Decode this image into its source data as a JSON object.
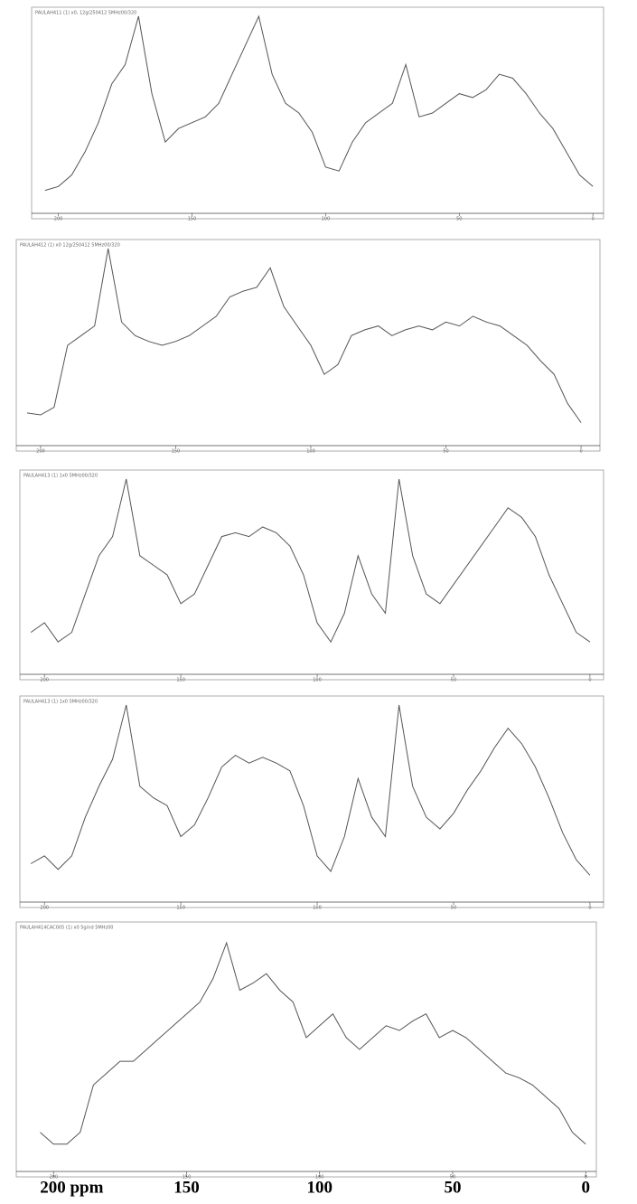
{
  "chart_data": [
    {
      "type": "line",
      "title": "PAULAH411 (1) x0, 12g/250412 5MHz00/320",
      "color": "#555555",
      "xlim": [
        210,
        -4
      ],
      "ylim": [
        0,
        100
      ],
      "xticks": [
        200,
        150,
        100,
        50,
        0
      ],
      "x": [
        205,
        200,
        195,
        190,
        185,
        180,
        175,
        170,
        165,
        160,
        155,
        150,
        145,
        140,
        135,
        130,
        125,
        120,
        115,
        110,
        105,
        100,
        95,
        90,
        85,
        80,
        75,
        70,
        65,
        60,
        55,
        50,
        45,
        40,
        35,
        30,
        25,
        20,
        15,
        10,
        5,
        0
      ],
      "values": [
        10,
        12,
        18,
        30,
        45,
        65,
        75,
        100,
        60,
        35,
        42,
        45,
        48,
        55,
        70,
        85,
        100,
        70,
        55,
        50,
        40,
        22,
        20,
        35,
        45,
        50,
        55,
        75,
        48,
        50,
        55,
        60,
        58,
        62,
        70,
        68,
        60,
        50,
        42,
        30,
        18,
        12
      ]
    },
    {
      "type": "line",
      "title": "PAULAH412 (1) x0 12g/250412 5MHz00/320",
      "color": "#555555",
      "xlim": [
        209,
        -7
      ],
      "ylim": [
        0,
        100
      ],
      "xticks": [
        200,
        150,
        100,
        50,
        0
      ],
      "x": [
        205,
        200,
        195,
        190,
        185,
        180,
        175,
        170,
        165,
        160,
        155,
        150,
        145,
        140,
        135,
        130,
        125,
        120,
        115,
        110,
        105,
        100,
        95,
        90,
        85,
        80,
        75,
        70,
        65,
        60,
        55,
        50,
        45,
        40,
        35,
        30,
        25,
        20,
        15,
        10,
        5,
        0
      ],
      "values": [
        15,
        14,
        18,
        50,
        55,
        60,
        100,
        62,
        55,
        52,
        50,
        52,
        55,
        60,
        65,
        75,
        78,
        80,
        90,
        70,
        60,
        50,
        35,
        40,
        55,
        58,
        60,
        55,
        58,
        60,
        58,
        62,
        60,
        65,
        62,
        60,
        55,
        50,
        42,
        35,
        20,
        10
      ]
    },
    {
      "type": "line",
      "title": "PAULAH413 (1) 1x0 5MHz00/320",
      "color": "#555555",
      "xlim": [
        209,
        -5
      ],
      "ylim": [
        0,
        100
      ],
      "xticks": [
        200,
        150,
        100,
        50,
        0
      ],
      "x": [
        205,
        200,
        195,
        190,
        185,
        180,
        175,
        170,
        165,
        160,
        155,
        150,
        145,
        140,
        135,
        130,
        125,
        120,
        115,
        110,
        105,
        100,
        95,
        90,
        85,
        80,
        75,
        70,
        65,
        60,
        55,
        50,
        45,
        40,
        35,
        30,
        25,
        20,
        15,
        10,
        5,
        0
      ],
      "values": [
        20,
        25,
        15,
        20,
        40,
        60,
        70,
        100,
        60,
        55,
        50,
        35,
        40,
        55,
        70,
        72,
        70,
        75,
        72,
        65,
        50,
        25,
        15,
        30,
        60,
        40,
        30,
        100,
        60,
        40,
        35,
        45,
        55,
        65,
        75,
        85,
        80,
        70,
        50,
        35,
        20,
        15
      ]
    },
    {
      "type": "line",
      "title": "PAULAH413 (1) 1x0 5MHz00/320",
      "color": "#555555",
      "xlim": [
        209,
        -5
      ],
      "ylim": [
        0,
        100
      ],
      "xticks": [
        200,
        150,
        100,
        50,
        0
      ],
      "x": [
        205,
        200,
        195,
        190,
        185,
        180,
        175,
        170,
        165,
        160,
        155,
        150,
        145,
        140,
        135,
        130,
        125,
        120,
        115,
        110,
        105,
        100,
        95,
        90,
        85,
        80,
        75,
        70,
        65,
        60,
        55,
        50,
        45,
        40,
        35,
        30,
        25,
        20,
        15,
        10,
        5,
        0
      ],
      "values": [
        18,
        22,
        15,
        22,
        42,
        58,
        72,
        100,
        58,
        52,
        48,
        32,
        38,
        52,
        68,
        74,
        70,
        73,
        70,
        66,
        48,
        22,
        14,
        32,
        62,
        42,
        32,
        100,
        58,
        42,
        36,
        44,
        56,
        66,
        78,
        88,
        80,
        68,
        52,
        34,
        20,
        12
      ]
    },
    {
      "type": "line",
      "title": "PAULAH414CAC005 (1) x0 5g/nd 5MHz00",
      "color": "#555555",
      "xlim": [
        214,
        -4
      ],
      "ylim": [
        0,
        100
      ],
      "xticks": [
        200,
        150,
        100,
        50,
        0
      ],
      "x": [
        205,
        200,
        195,
        190,
        185,
        180,
        175,
        170,
        165,
        160,
        155,
        150,
        145,
        140,
        135,
        130,
        125,
        120,
        115,
        110,
        105,
        100,
        95,
        90,
        85,
        80,
        75,
        70,
        65,
        60,
        55,
        50,
        45,
        40,
        35,
        30,
        25,
        20,
        15,
        10,
        5,
        0
      ],
      "values": [
        15,
        10,
        10,
        15,
        35,
        40,
        45,
        45,
        50,
        55,
        60,
        65,
        70,
        80,
        95,
        75,
        78,
        82,
        75,
        70,
        55,
        60,
        65,
        55,
        50,
        55,
        60,
        58,
        62,
        65,
        55,
        58,
        55,
        50,
        45,
        40,
        38,
        35,
        30,
        25,
        15,
        10
      ]
    }
  ],
  "shared_axis": {
    "xlim": [
      214,
      -4
    ],
    "xticks": [
      {
        "value": 200,
        "label": "200 ppm"
      },
      150,
      100,
      50,
      0
    ]
  }
}
